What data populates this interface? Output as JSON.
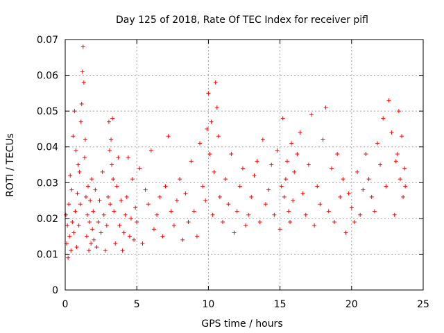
{
  "chart_data": {
    "type": "scatter",
    "title": "Day 125 of 2018, Rate Of TEC Index for receiver pifl",
    "xlabel": "GPS time / hours",
    "ylabel": "ROTI / TECUs",
    "xlim": [
      0,
      25
    ],
    "ylim": [
      0,
      0.07
    ],
    "x_ticks": [
      "0",
      "5",
      "10",
      "15",
      "20",
      "25"
    ],
    "y_ticks": [
      "0",
      "0.01",
      "0.02",
      "0.03",
      "0.04",
      "0.05",
      "0.06",
      "0.07"
    ],
    "grid": true,
    "marker": "plus",
    "color": "#ff0000",
    "series": [
      {
        "name": "ROTI",
        "x": [
          0.05,
          0.1,
          0.15,
          0.2,
          0.25,
          0.3,
          0.35,
          0.4,
          0.45,
          0.5,
          0.55,
          0.6,
          0.65,
          0.7,
          0.75,
          0.8,
          0.85,
          0.9,
          0.95,
          1.0,
          1.05,
          1.1,
          1.15,
          1.2,
          1.25,
          1.3,
          1.35,
          1.4,
          1.45,
          1.5,
          1.55,
          1.6,
          1.65,
          1.7,
          1.75,
          1.8,
          1.85,
          1.9,
          1.95,
          2.0,
          2.1,
          2.2,
          2.3,
          2.4,
          2.5,
          2.6,
          2.7,
          2.8,
          2.9,
          3.0,
          3.05,
          3.1,
          3.15,
          3.2,
          3.25,
          3.3,
          3.35,
          3.4,
          3.5,
          3.6,
          3.7,
          3.8,
          3.9,
          4.0,
          4.1,
          4.2,
          4.3,
          4.4,
          4.5,
          4.6,
          4.7,
          4.8,
          4.9,
          5.0,
          5.2,
          5.4,
          5.6,
          5.8,
          6.0,
          6.2,
          6.4,
          6.6,
          6.8,
          7.0,
          7.2,
          7.4,
          7.6,
          7.8,
          8.0,
          8.2,
          8.4,
          8.6,
          8.8,
          9.0,
          9.2,
          9.4,
          9.6,
          9.8,
          9.9,
          10.0,
          10.1,
          10.2,
          10.3,
          10.4,
          10.5,
          10.6,
          10.7,
          10.8,
          11.0,
          11.2,
          11.4,
          11.6,
          11.8,
          12.0,
          12.2,
          12.4,
          12.6,
          12.8,
          13.0,
          13.2,
          13.4,
          13.6,
          13.8,
          14.0,
          14.2,
          14.4,
          14.6,
          14.8,
          15.0,
          15.1,
          15.2,
          15.3,
          15.4,
          15.5,
          15.6,
          15.7,
          15.8,
          15.9,
          16.0,
          16.2,
          16.4,
          16.6,
          16.8,
          17.0,
          17.2,
          17.4,
          17.6,
          17.8,
          18.0,
          18.2,
          18.4,
          18.6,
          18.8,
          19.0,
          19.2,
          19.4,
          19.6,
          19.8,
          20.0,
          20.2,
          20.4,
          20.6,
          20.8,
          21.0,
          21.2,
          21.4,
          21.6,
          21.8,
          22.0,
          22.2,
          22.4,
          22.6,
          22.8,
          23.0,
          23.1,
          23.2,
          23.3,
          23.4,
          23.5,
          23.6,
          23.7,
          23.75
        ],
        "y": [
          0.021,
          0.013,
          0.018,
          0.009,
          0.024,
          0.015,
          0.032,
          0.011,
          0.028,
          0.019,
          0.043,
          0.016,
          0.05,
          0.022,
          0.039,
          0.012,
          0.027,
          0.035,
          0.018,
          0.033,
          0.024,
          0.047,
          0.052,
          0.061,
          0.068,
          0.058,
          0.037,
          0.042,
          0.026,
          0.015,
          0.021,
          0.029,
          0.011,
          0.019,
          0.025,
          0.013,
          0.031,
          0.017,
          0.022,
          0.014,
          0.028,
          0.012,
          0.019,
          0.025,
          0.016,
          0.033,
          0.021,
          0.011,
          0.018,
          0.026,
          0.047,
          0.039,
          0.024,
          0.042,
          0.035,
          0.048,
          0.031,
          0.022,
          0.013,
          0.029,
          0.037,
          0.018,
          0.025,
          0.011,
          0.016,
          0.021,
          0.026,
          0.037,
          0.015,
          0.02,
          0.031,
          0.014,
          0.023,
          0.019,
          0.034,
          0.013,
          0.028,
          0.024,
          0.039,
          0.017,
          0.021,
          0.026,
          0.015,
          0.029,
          0.043,
          0.022,
          0.018,
          0.025,
          0.031,
          0.014,
          0.027,
          0.019,
          0.036,
          0.022,
          0.015,
          0.041,
          0.029,
          0.025,
          0.045,
          0.055,
          0.038,
          0.047,
          0.021,
          0.033,
          0.058,
          0.051,
          0.043,
          0.026,
          0.019,
          0.031,
          0.024,
          0.038,
          0.016,
          0.022,
          0.029,
          0.034,
          0.018,
          0.021,
          0.026,
          0.032,
          0.036,
          0.019,
          0.042,
          0.024,
          0.028,
          0.035,
          0.021,
          0.039,
          0.017,
          0.029,
          0.048,
          0.026,
          0.031,
          0.036,
          0.022,
          0.019,
          0.041,
          0.025,
          0.033,
          0.038,
          0.044,
          0.027,
          0.021,
          0.035,
          0.049,
          0.018,
          0.029,
          0.024,
          0.042,
          0.051,
          0.022,
          0.034,
          0.019,
          0.038,
          0.026,
          0.031,
          0.016,
          0.027,
          0.023,
          0.019,
          0.033,
          0.021,
          0.028,
          0.038,
          0.031,
          0.026,
          0.022,
          0.041,
          0.035,
          0.048,
          0.029,
          0.053,
          0.044,
          0.021,
          0.036,
          0.038,
          0.05,
          0.031,
          0.043,
          0.026,
          0.034,
          0.029
        ]
      }
    ]
  }
}
